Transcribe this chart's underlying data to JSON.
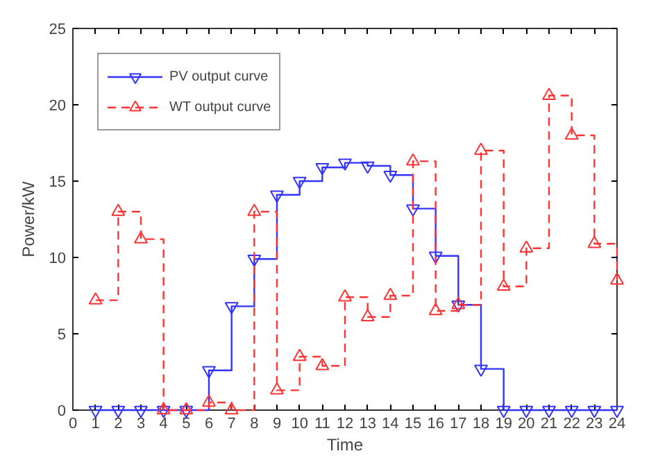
{
  "chart_data": {
    "type": "step",
    "xlabel": "Time",
    "ylabel": "Power/kW",
    "x": [
      1,
      2,
      3,
      4,
      5,
      6,
      7,
      8,
      9,
      10,
      11,
      12,
      13,
      14,
      15,
      16,
      17,
      18,
      19,
      20,
      21,
      22,
      23,
      24
    ],
    "series": [
      {
        "name": "PV output curve",
        "color": "#3333ff",
        "marker": "triangle-down",
        "line_style": "solid",
        "values": [
          0,
          0,
          0,
          0,
          0,
          2.6,
          6.8,
          9.9,
          14.1,
          15.0,
          15.9,
          16.2,
          16.0,
          15.4,
          13.2,
          10.1,
          6.9,
          2.7,
          0,
          0,
          0,
          0,
          0,
          0
        ]
      },
      {
        "name": "WT output curve",
        "color": "#ff3333",
        "marker": "triangle",
        "line_style": "dashed",
        "values": [
          7.2,
          13.0,
          11.2,
          0,
          0,
          0.5,
          0,
          13.0,
          1.3,
          3.5,
          2.9,
          7.4,
          6.1,
          7.5,
          16.3,
          6.5,
          6.9,
          17.0,
          8.1,
          10.6,
          20.6,
          18.0,
          10.9,
          8.5
        ]
      }
    ],
    "xlim": [
      0,
      24
    ],
    "xticks": [
      0,
      1,
      2,
      3,
      4,
      5,
      6,
      7,
      8,
      9,
      10,
      11,
      12,
      13,
      14,
      15,
      16,
      17,
      18,
      19,
      20,
      21,
      22,
      23,
      24
    ],
    "ylim": [
      0,
      25
    ],
    "yticks": [
      0,
      5,
      10,
      15,
      20,
      25
    ],
    "grid": false,
    "legend": "top left"
  }
}
